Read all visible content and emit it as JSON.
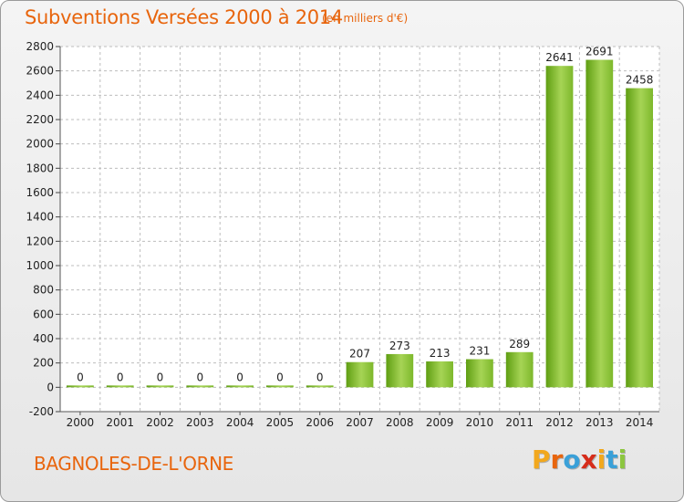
{
  "header": {
    "title": "Subventions Versées 2000 à 2014",
    "subtitle": "(en milliers d'€)"
  },
  "footer": {
    "commune": "BAGNOLES-DE-L'ORNE",
    "logo_text": "Proxiti",
    "logo_colors": [
      "#f2a81d",
      "#e8650d",
      "#3aa0d8",
      "#d62c1a",
      "#f2a81d",
      "#3aa0d8",
      "#8cc63f"
    ]
  },
  "colors": {
    "title": "#e8650d",
    "bar_light": "#a6d455",
    "bar_dark": "#5f9e12",
    "grid": "#bdbdbd"
  },
  "chart_data": {
    "type": "bar",
    "title": "Subventions Versées 2000 à 2014",
    "subtitle": "(en milliers d'€)",
    "categories": [
      "2000",
      "2001",
      "2002",
      "2003",
      "2004",
      "2005",
      "2006",
      "2007",
      "2008",
      "2009",
      "2010",
      "2011",
      "2012",
      "2013",
      "2014"
    ],
    "values": [
      0,
      0,
      0,
      0,
      0,
      0,
      0,
      207,
      273,
      213,
      231,
      289,
      2641,
      2691,
      2458
    ],
    "ylim": [
      -200,
      2800
    ],
    "yticks": [
      -200,
      0,
      200,
      400,
      600,
      800,
      1000,
      1200,
      1400,
      1600,
      1800,
      2000,
      2200,
      2400,
      2600,
      2800
    ],
    "grid": true,
    "grid_axis": "y"
  }
}
